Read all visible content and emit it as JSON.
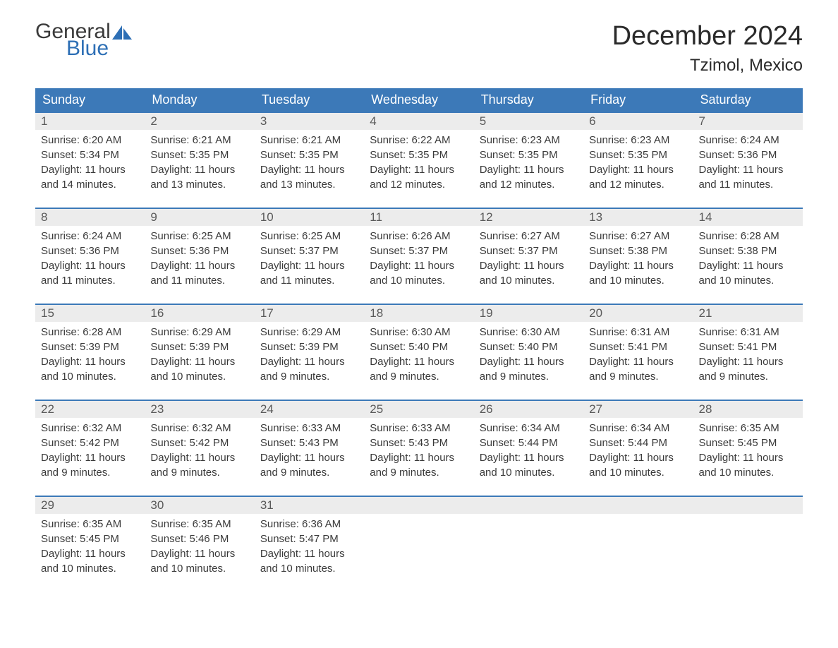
{
  "logo": {
    "text_general": "General",
    "text_blue": "Blue",
    "icon_color": "#2d6fb5"
  },
  "title": "December 2024",
  "location": "Tzimol, Mexico",
  "colors": {
    "header_bg": "#3c79b8",
    "header_text": "#ffffff",
    "day_number_bg": "#ececec",
    "day_number_text": "#5a5a5a",
    "body_text": "#3a3a3a",
    "row_border": "#3c79b8",
    "background": "#ffffff"
  },
  "typography": {
    "title_fontsize": 38,
    "location_fontsize": 24,
    "header_fontsize": 18,
    "daynum_fontsize": 17,
    "content_fontsize": 15,
    "logo_fontsize": 30
  },
  "weekdays": [
    "Sunday",
    "Monday",
    "Tuesday",
    "Wednesday",
    "Thursday",
    "Friday",
    "Saturday"
  ],
  "weeks": [
    [
      {
        "day": "1",
        "sunrise": "Sunrise: 6:20 AM",
        "sunset": "Sunset: 5:34 PM",
        "daylight": "Daylight: 11 hours and 14 minutes."
      },
      {
        "day": "2",
        "sunrise": "Sunrise: 6:21 AM",
        "sunset": "Sunset: 5:35 PM",
        "daylight": "Daylight: 11 hours and 13 minutes."
      },
      {
        "day": "3",
        "sunrise": "Sunrise: 6:21 AM",
        "sunset": "Sunset: 5:35 PM",
        "daylight": "Daylight: 11 hours and 13 minutes."
      },
      {
        "day": "4",
        "sunrise": "Sunrise: 6:22 AM",
        "sunset": "Sunset: 5:35 PM",
        "daylight": "Daylight: 11 hours and 12 minutes."
      },
      {
        "day": "5",
        "sunrise": "Sunrise: 6:23 AM",
        "sunset": "Sunset: 5:35 PM",
        "daylight": "Daylight: 11 hours and 12 minutes."
      },
      {
        "day": "6",
        "sunrise": "Sunrise: 6:23 AM",
        "sunset": "Sunset: 5:35 PM",
        "daylight": "Daylight: 11 hours and 12 minutes."
      },
      {
        "day": "7",
        "sunrise": "Sunrise: 6:24 AM",
        "sunset": "Sunset: 5:36 PM",
        "daylight": "Daylight: 11 hours and 11 minutes."
      }
    ],
    [
      {
        "day": "8",
        "sunrise": "Sunrise: 6:24 AM",
        "sunset": "Sunset: 5:36 PM",
        "daylight": "Daylight: 11 hours and 11 minutes."
      },
      {
        "day": "9",
        "sunrise": "Sunrise: 6:25 AM",
        "sunset": "Sunset: 5:36 PM",
        "daylight": "Daylight: 11 hours and 11 minutes."
      },
      {
        "day": "10",
        "sunrise": "Sunrise: 6:25 AM",
        "sunset": "Sunset: 5:37 PM",
        "daylight": "Daylight: 11 hours and 11 minutes."
      },
      {
        "day": "11",
        "sunrise": "Sunrise: 6:26 AM",
        "sunset": "Sunset: 5:37 PM",
        "daylight": "Daylight: 11 hours and 10 minutes."
      },
      {
        "day": "12",
        "sunrise": "Sunrise: 6:27 AM",
        "sunset": "Sunset: 5:37 PM",
        "daylight": "Daylight: 11 hours and 10 minutes."
      },
      {
        "day": "13",
        "sunrise": "Sunrise: 6:27 AM",
        "sunset": "Sunset: 5:38 PM",
        "daylight": "Daylight: 11 hours and 10 minutes."
      },
      {
        "day": "14",
        "sunrise": "Sunrise: 6:28 AM",
        "sunset": "Sunset: 5:38 PM",
        "daylight": "Daylight: 11 hours and 10 minutes."
      }
    ],
    [
      {
        "day": "15",
        "sunrise": "Sunrise: 6:28 AM",
        "sunset": "Sunset: 5:39 PM",
        "daylight": "Daylight: 11 hours and 10 minutes."
      },
      {
        "day": "16",
        "sunrise": "Sunrise: 6:29 AM",
        "sunset": "Sunset: 5:39 PM",
        "daylight": "Daylight: 11 hours and 10 minutes."
      },
      {
        "day": "17",
        "sunrise": "Sunrise: 6:29 AM",
        "sunset": "Sunset: 5:39 PM",
        "daylight": "Daylight: 11 hours and 9 minutes."
      },
      {
        "day": "18",
        "sunrise": "Sunrise: 6:30 AM",
        "sunset": "Sunset: 5:40 PM",
        "daylight": "Daylight: 11 hours and 9 minutes."
      },
      {
        "day": "19",
        "sunrise": "Sunrise: 6:30 AM",
        "sunset": "Sunset: 5:40 PM",
        "daylight": "Daylight: 11 hours and 9 minutes."
      },
      {
        "day": "20",
        "sunrise": "Sunrise: 6:31 AM",
        "sunset": "Sunset: 5:41 PM",
        "daylight": "Daylight: 11 hours and 9 minutes."
      },
      {
        "day": "21",
        "sunrise": "Sunrise: 6:31 AM",
        "sunset": "Sunset: 5:41 PM",
        "daylight": "Daylight: 11 hours and 9 minutes."
      }
    ],
    [
      {
        "day": "22",
        "sunrise": "Sunrise: 6:32 AM",
        "sunset": "Sunset: 5:42 PM",
        "daylight": "Daylight: 11 hours and 9 minutes."
      },
      {
        "day": "23",
        "sunrise": "Sunrise: 6:32 AM",
        "sunset": "Sunset: 5:42 PM",
        "daylight": "Daylight: 11 hours and 9 minutes."
      },
      {
        "day": "24",
        "sunrise": "Sunrise: 6:33 AM",
        "sunset": "Sunset: 5:43 PM",
        "daylight": "Daylight: 11 hours and 9 minutes."
      },
      {
        "day": "25",
        "sunrise": "Sunrise: 6:33 AM",
        "sunset": "Sunset: 5:43 PM",
        "daylight": "Daylight: 11 hours and 9 minutes."
      },
      {
        "day": "26",
        "sunrise": "Sunrise: 6:34 AM",
        "sunset": "Sunset: 5:44 PM",
        "daylight": "Daylight: 11 hours and 10 minutes."
      },
      {
        "day": "27",
        "sunrise": "Sunrise: 6:34 AM",
        "sunset": "Sunset: 5:44 PM",
        "daylight": "Daylight: 11 hours and 10 minutes."
      },
      {
        "day": "28",
        "sunrise": "Sunrise: 6:35 AM",
        "sunset": "Sunset: 5:45 PM",
        "daylight": "Daylight: 11 hours and 10 minutes."
      }
    ],
    [
      {
        "day": "29",
        "sunrise": "Sunrise: 6:35 AM",
        "sunset": "Sunset: 5:45 PM",
        "daylight": "Daylight: 11 hours and 10 minutes."
      },
      {
        "day": "30",
        "sunrise": "Sunrise: 6:35 AM",
        "sunset": "Sunset: 5:46 PM",
        "daylight": "Daylight: 11 hours and 10 minutes."
      },
      {
        "day": "31",
        "sunrise": "Sunrise: 6:36 AM",
        "sunset": "Sunset: 5:47 PM",
        "daylight": "Daylight: 11 hours and 10 minutes."
      },
      null,
      null,
      null,
      null
    ]
  ]
}
